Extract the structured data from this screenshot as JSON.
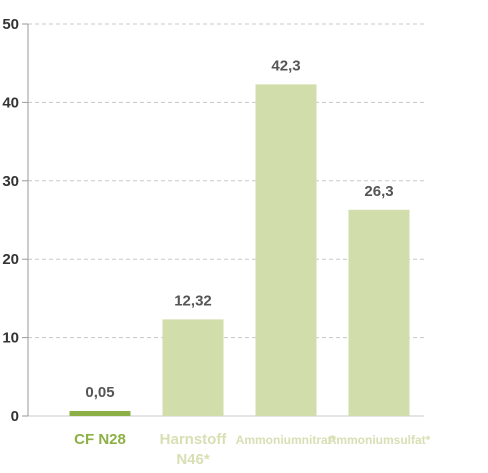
{
  "chart_data": {
    "type": "bar",
    "title": "",
    "xlabel": "",
    "ylabel": "",
    "ylim": [
      0,
      50
    ],
    "yticks": [
      0,
      10,
      20,
      30,
      40,
      50
    ],
    "grid": true,
    "legend": "none",
    "categories": [
      {
        "label": "CF N28",
        "lines": [
          "CF N28"
        ],
        "value": 0.05,
        "display": "0,05",
        "color": "#8db046",
        "label_color": "#8db046"
      },
      {
        "label": "Harnstoff N46*",
        "lines": [
          "Harnstoff",
          "N46*"
        ],
        "value": 12.32,
        "display": "12,32",
        "color": "#d2ddac",
        "label_color": "#d7dfb3"
      },
      {
        "label": "Ammoniumnitrat*",
        "lines": [
          "Ammoniumnitrat*"
        ],
        "value": 42.3,
        "display": "42,3",
        "color": "#d2ddac",
        "label_color": "#d7dfb3"
      },
      {
        "label": "Ammoniumsulfat*",
        "lines": [
          "Ammoniumsulfat*"
        ],
        "value": 26.3,
        "display": "26,3",
        "color": "#d2ddac",
        "label_color": "#d7dfb3"
      }
    ]
  }
}
